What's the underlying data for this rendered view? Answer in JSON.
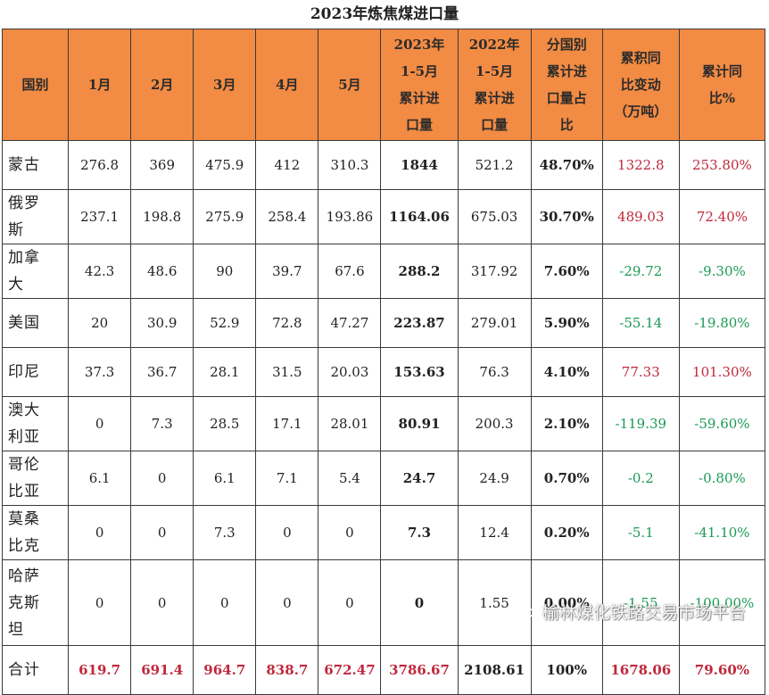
{
  "title": "2023年炼焦煤进口量",
  "headers": [
    [
      "国别"
    ],
    [
      "1月"
    ],
    [
      "2月"
    ],
    [
      "3月"
    ],
    [
      "4月"
    ],
    [
      "5月"
    ],
    [
      "2023年",
      "1-5月",
      "累计进",
      "口量"
    ],
    [
      "2022年",
      "1-5月",
      "累计进",
      "口量"
    ],
    [
      "分国别",
      "累计进",
      "口量占",
      "比"
    ],
    [
      "累积同",
      "比变动",
      "（万吨）"
    ],
    [
      "累计同",
      "比%"
    ]
  ],
  "rows": [
    {
      "name": [
        "蒙古"
      ],
      "cells": [
        "276.8",
        "369",
        "475.9",
        "412",
        "310.3",
        "1844",
        "521.2",
        "48.70%",
        "1322.8",
        "253.80%"
      ],
      "change_color": "#c0283c"
    },
    {
      "name": [
        "俄罗",
        "斯"
      ],
      "cells": [
        "237.1",
        "198.8",
        "275.9",
        "258.4",
        "193.86",
        "1164.06",
        "675.03",
        "30.70%",
        "489.03",
        "72.40%"
      ],
      "change_color": "#c0283c"
    },
    {
      "name": [
        "加拿",
        "大"
      ],
      "cells": [
        "42.3",
        "48.6",
        "90",
        "39.7",
        "67.6",
        "288.2",
        "317.92",
        "7.60%",
        "-29.72",
        "-9.30%"
      ],
      "change_color": "#1a9a55"
    },
    {
      "name": [
        "美国"
      ],
      "cells": [
        "20",
        "30.9",
        "52.9",
        "72.8",
        "47.27",
        "223.87",
        "279.01",
        "5.90%",
        "-55.14",
        "-19.80%"
      ],
      "change_color": "#1a9a55"
    },
    {
      "name": [
        "印尼"
      ],
      "cells": [
        "37.3",
        "36.7",
        "28.1",
        "31.5",
        "20.03",
        "153.63",
        "76.3",
        "4.10%",
        "77.33",
        "101.30%"
      ],
      "change_color": "#c0283c"
    },
    {
      "name": [
        "澳大",
        "利亚"
      ],
      "cells": [
        "0",
        "7.3",
        "28.5",
        "17.1",
        "28.01",
        "80.91",
        "200.3",
        "2.10%",
        "-119.39",
        "-59.60%"
      ],
      "change_color": "#1a9a55"
    },
    {
      "name": [
        "哥伦",
        "比亚"
      ],
      "cells": [
        "6.1",
        "0",
        "6.1",
        "7.1",
        "5.4",
        "24.7",
        "24.9",
        "0.70%",
        "-0.2",
        "-0.80%"
      ],
      "change_color": "#1a9a55"
    },
    {
      "name": [
        "莫桑",
        "比克"
      ],
      "cells": [
        "0",
        "0",
        "7.3",
        "0",
        "0",
        "7.3",
        "12.4",
        "0.20%",
        "-5.1",
        "-41.10%"
      ],
      "change_color": "#1a9a55"
    },
    {
      "name": [
        "哈萨",
        "克斯",
        "坦"
      ],
      "cells": [
        "0",
        "0",
        "0",
        "0",
        "0",
        "0",
        "1.55",
        "0.00%",
        "-1.55",
        "-100.00%"
      ],
      "change_color": "#1a9a55"
    }
  ],
  "total": {
    "name": "合计",
    "cells": [
      "619.7",
      "691.4",
      "964.7",
      "838.7",
      "672.47",
      "3786.67",
      "2108.61",
      "100%",
      "1678.06",
      "79.60%"
    ]
  },
  "total_colors": [
    "#c0283c",
    "#c0283c",
    "#c0283c",
    "#c0283c",
    "#c0283c",
    "#c0283c",
    "#222222",
    "#222222",
    "#c0283c",
    "#c0283c"
  ],
  "watermark": "榆林煤化铁路交易市场平台"
}
